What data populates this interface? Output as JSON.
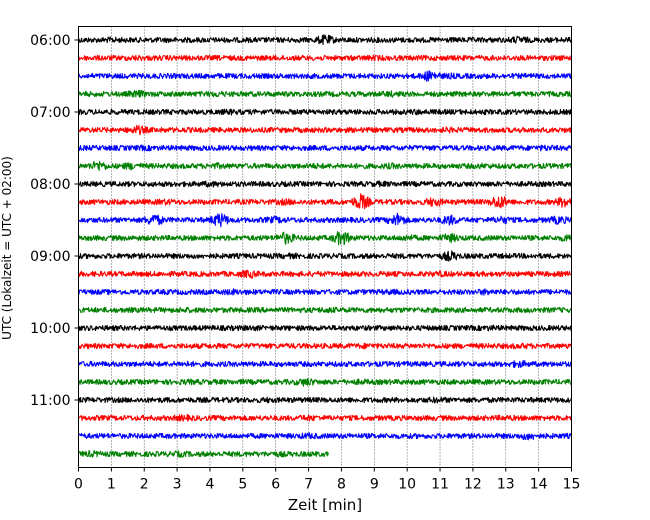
{
  "chart_data": {
    "type": "line",
    "xlabel": "Zeit  [min]",
    "ylabel": "UTC (Lokalzeit = UTC + 02:00)",
    "xlim": [
      0,
      15
    ],
    "x_ticks": [
      "0",
      "1",
      "2",
      "3",
      "4",
      "5",
      "6",
      "7",
      "8",
      "9",
      "10",
      "11",
      "12",
      "13",
      "14",
      "15"
    ],
    "y_ticks": [
      "06:00",
      "07:00",
      "08:00",
      "09:00",
      "10:00",
      "11:00"
    ],
    "grid": "vertical dotted",
    "trace_interval_min": 15,
    "traces_per_hour": 4,
    "trace_colors": [
      "#000000",
      "#ff0000",
      "#0000ff",
      "#008000"
    ],
    "traces": [
      {
        "start": "06:00",
        "color": "#000000",
        "end_min": 15,
        "events": [
          [
            7.5,
            2.2
          ],
          [
            13.4,
            1.6
          ],
          [
            1.0,
            1.2
          ]
        ]
      },
      {
        "start": "06:15",
        "color": "#ff0000",
        "end_min": 15,
        "events": [
          [
            1.8,
            1.2
          ],
          [
            9.0,
            1.2
          ]
        ]
      },
      {
        "start": "06:30",
        "color": "#0000ff",
        "end_min": 15,
        "events": [
          [
            10.7,
            2.4
          ],
          [
            11.3,
            1.2
          ]
        ]
      },
      {
        "start": "06:45",
        "color": "#008000",
        "end_min": 15,
        "events": [
          [
            1.8,
            1.6
          ],
          [
            4.2,
            1.3
          ],
          [
            9.5,
            1.3
          ]
        ]
      },
      {
        "start": "07:00",
        "color": "#000000",
        "end_min": 15,
        "events": [
          [
            4.6,
            1.2
          ],
          [
            10.3,
            1.2
          ]
        ]
      },
      {
        "start": "07:15",
        "color": "#ff0000",
        "end_min": 15,
        "events": [
          [
            1.8,
            2.0
          ],
          [
            11.2,
            1.2
          ]
        ]
      },
      {
        "start": "07:30",
        "color": "#0000ff",
        "end_min": 15,
        "events": [
          [
            2.0,
            1.2
          ],
          [
            14.2,
            1.3
          ]
        ]
      },
      {
        "start": "07:45",
        "color": "#008000",
        "end_min": 15,
        "events": [
          [
            0.6,
            2.2
          ],
          [
            1.6,
            1.6
          ],
          [
            4.2,
            1.3
          ],
          [
            7.2,
            1.2
          ],
          [
            9.5,
            1.3
          ],
          [
            12.2,
            1.2
          ]
        ]
      },
      {
        "start": "08:00",
        "color": "#000000",
        "end_min": 15,
        "events": [
          [
            4.0,
            1.3
          ],
          [
            9.2,
            1.2
          ]
        ]
      },
      {
        "start": "08:15",
        "color": "#ff0000",
        "end_min": 15,
        "events": [
          [
            8.6,
            3.4
          ],
          [
            10.8,
            2.0
          ],
          [
            12.8,
            3.0
          ],
          [
            14.8,
            2.6
          ],
          [
            6.3,
            1.4
          ],
          [
            2.6,
            1.3
          ]
        ]
      },
      {
        "start": "08:30",
        "color": "#0000ff",
        "end_min": 15,
        "events": [
          [
            2.3,
            2.6
          ],
          [
            4.3,
            3.0
          ],
          [
            6.0,
            1.6
          ],
          [
            9.7,
            2.8
          ],
          [
            11.3,
            2.2
          ],
          [
            12.9,
            1.6
          ],
          [
            14.6,
            1.8
          ]
        ]
      },
      {
        "start": "08:45",
        "color": "#008000",
        "end_min": 15,
        "events": [
          [
            6.3,
            2.6
          ],
          [
            8.0,
            3.2
          ],
          [
            10.0,
            1.4
          ],
          [
            11.3,
            2.0
          ],
          [
            15.0,
            2.2
          ]
        ]
      },
      {
        "start": "09:00",
        "color": "#000000",
        "end_min": 15,
        "events": [
          [
            11.3,
            2.2
          ],
          [
            6.4,
            1.2
          ]
        ]
      },
      {
        "start": "09:15",
        "color": "#ff0000",
        "end_min": 15,
        "events": [
          [
            5.2,
            1.8
          ],
          [
            11.0,
            1.3
          ]
        ]
      },
      {
        "start": "09:30",
        "color": "#0000ff",
        "end_min": 15,
        "events": [
          [
            4.7,
            1.3
          ],
          [
            12.4,
            1.4
          ],
          [
            9.5,
            1.2
          ]
        ]
      },
      {
        "start": "09:45",
        "color": "#008000",
        "end_min": 15,
        "events": [
          [
            7.6,
            1.3
          ],
          [
            3.2,
            1.2
          ]
        ]
      },
      {
        "start": "10:00",
        "color": "#000000",
        "end_min": 15,
        "events": [
          [
            5.2,
            1.2
          ],
          [
            12.5,
            1.2
          ]
        ]
      },
      {
        "start": "10:15",
        "color": "#ff0000",
        "end_min": 15,
        "events": [
          [
            8.8,
            1.2
          ],
          [
            13.5,
            1.2
          ]
        ]
      },
      {
        "start": "10:30",
        "color": "#0000ff",
        "end_min": 15,
        "events": [
          [
            13.4,
            1.6
          ],
          [
            3.2,
            1.2
          ]
        ]
      },
      {
        "start": "10:45",
        "color": "#008000",
        "end_min": 15,
        "events": [
          [
            6.9,
            1.8
          ],
          [
            8.6,
            1.2
          ],
          [
            3.4,
            1.2
          ]
        ]
      },
      {
        "start": "11:00",
        "color": "#000000",
        "end_min": 15,
        "events": [
          [
            10.9,
            1.3
          ],
          [
            5.8,
            1.2
          ]
        ]
      },
      {
        "start": "11:15",
        "color": "#ff0000",
        "end_min": 15,
        "events": [
          [
            3.2,
            1.4
          ],
          [
            7.0,
            1.3
          ],
          [
            13.0,
            1.2
          ]
        ]
      },
      {
        "start": "11:30",
        "color": "#0000ff",
        "end_min": 15,
        "events": [
          [
            13.7,
            1.8
          ],
          [
            7.0,
            1.3
          ]
        ]
      },
      {
        "start": "11:45",
        "color": "#008000",
        "end_min": 7.6,
        "events": [
          [
            0.4,
            1.4
          ],
          [
            3.1,
            1.3
          ],
          [
            6.1,
            1.2
          ]
        ]
      }
    ]
  }
}
